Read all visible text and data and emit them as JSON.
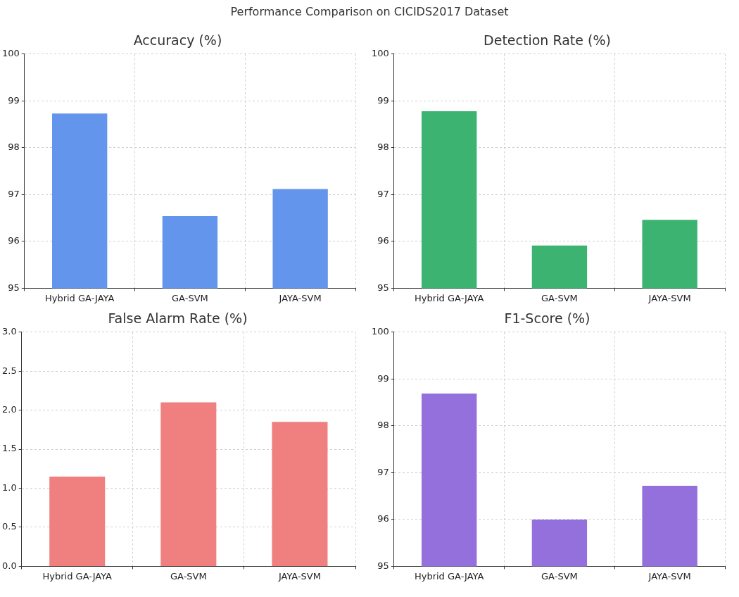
{
  "chart_data": [
    {
      "type": "bar",
      "title": "Accuracy (%)",
      "annotations": [
        "Performance Comparison on CICIDS2017 Dataset"
      ],
      "categories": [
        "Hybrid GA-JAYA",
        "GA-SVM",
        "JAYA-SVM"
      ],
      "values": [
        98.73,
        96.54,
        97.12
      ],
      "color": "#6495ed",
      "ylim": [
        95,
        100
      ],
      "yticks": [
        95,
        96,
        97,
        98,
        99,
        100
      ],
      "grid": true,
      "legend": false
    },
    {
      "type": "bar",
      "title": "Detection Rate (%)",
      "categories": [
        "Hybrid GA-JAYA",
        "GA-SVM",
        "JAYA-SVM"
      ],
      "values": [
        98.78,
        95.91,
        96.46
      ],
      "color": "#3cb371",
      "ylim": [
        95,
        100
      ],
      "yticks": [
        95,
        96,
        97,
        98,
        99,
        100
      ],
      "grid": true,
      "legend": false
    },
    {
      "type": "bar",
      "title": "False Alarm Rate (%)",
      "categories": [
        "Hybrid GA-JAYA",
        "GA-SVM",
        "JAYA-SVM"
      ],
      "values": [
        1.15,
        2.1,
        1.85
      ],
      "color": "#f08080",
      "ylim": [
        0,
        3
      ],
      "yticks": [
        {
          "value": 0,
          "label": "0.0"
        },
        {
          "value": 0.5,
          "label": "0.5"
        },
        {
          "value": 1,
          "label": "1.0"
        },
        {
          "value": 1.5,
          "label": "1.5"
        },
        {
          "value": 2,
          "label": "2.0"
        },
        {
          "value": 2.5,
          "label": "2.5"
        },
        {
          "value": 3,
          "label": "3.0"
        }
      ],
      "grid": true,
      "legend": false
    },
    {
      "type": "bar",
      "title": "F1-Score (%)",
      "categories": [
        "Hybrid GA-JAYA",
        "GA-SVM",
        "JAYA-SVM"
      ],
      "values": [
        98.69,
        96.0,
        96.72
      ],
      "color": "#9370db",
      "ylim": [
        95,
        100
      ],
      "yticks": [
        95,
        96,
        97,
        98,
        99,
        100
      ],
      "grid": true,
      "legend": false
    }
  ]
}
